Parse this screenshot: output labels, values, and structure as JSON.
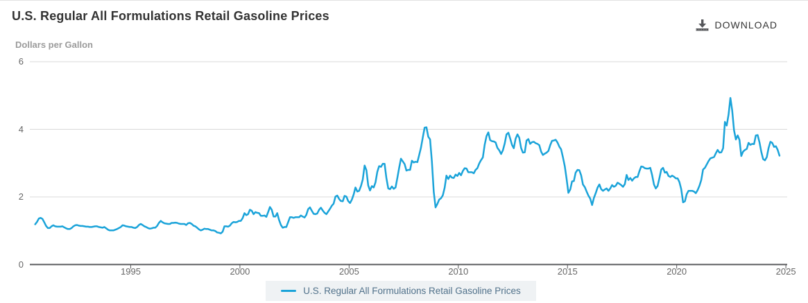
{
  "header": {
    "title": "U.S. Regular All Formulations Retail Gasoline Prices",
    "download_label": "DOWNLOAD"
  },
  "colors": {
    "line": "#1aa3d9",
    "grid": "#d9d9d9",
    "axis": "#58595b",
    "title_text": "#333333",
    "tick_text": "#666666",
    "subtitle_text": "#9b9b9b",
    "legend_bg": "#eff2f4",
    "legend_text": "#50718a"
  },
  "chart_data": {
    "type": "line",
    "title": "U.S. Regular All Formulations Retail Gasoline Prices",
    "xlabel": "",
    "ylabel": "Dollars per Gallon",
    "x_ticks": [
      1995,
      2000,
      2005,
      2010,
      2015,
      2020,
      2025
    ],
    "y_ticks": [
      0,
      2,
      4,
      6
    ],
    "ylim": [
      0,
      6
    ],
    "xlim": [
      1990.38,
      2025.06
    ],
    "grid": true,
    "legend_position": "bottom",
    "series": [
      {
        "name": "U.S. Regular All Formulations Retail Gasoline Prices",
        "frequency": "monthly",
        "start_year": 1990,
        "start_month": 8,
        "end_year": 2024,
        "end_month": 9,
        "values": [
          1.19,
          1.26,
          1.36,
          1.38,
          1.35,
          1.25,
          1.14,
          1.08,
          1.08,
          1.13,
          1.16,
          1.13,
          1.12,
          1.12,
          1.12,
          1.13,
          1.1,
          1.07,
          1.05,
          1.05,
          1.08,
          1.13,
          1.16,
          1.17,
          1.15,
          1.14,
          1.14,
          1.13,
          1.12,
          1.12,
          1.11,
          1.11,
          1.12,
          1.13,
          1.13,
          1.11,
          1.1,
          1.09,
          1.11,
          1.07,
          1.03,
          1.01,
          1.01,
          1.01,
          1.03,
          1.05,
          1.08,
          1.11,
          1.16,
          1.15,
          1.13,
          1.12,
          1.11,
          1.11,
          1.09,
          1.08,
          1.11,
          1.17,
          1.2,
          1.17,
          1.13,
          1.11,
          1.08,
          1.06,
          1.07,
          1.09,
          1.09,
          1.14,
          1.23,
          1.29,
          1.25,
          1.22,
          1.21,
          1.2,
          1.2,
          1.23,
          1.23,
          1.24,
          1.23,
          1.21,
          1.2,
          1.2,
          1.2,
          1.17,
          1.22,
          1.23,
          1.2,
          1.15,
          1.13,
          1.09,
          1.04,
          1.01,
          1.03,
          1.06,
          1.05,
          1.05,
          1.03,
          1.01,
          1.01,
          0.99,
          0.95,
          0.94,
          0.92,
          0.97,
          1.13,
          1.13,
          1.12,
          1.15,
          1.22,
          1.26,
          1.25,
          1.26,
          1.29,
          1.29,
          1.37,
          1.52,
          1.46,
          1.49,
          1.62,
          1.59,
          1.49,
          1.55,
          1.53,
          1.52,
          1.44,
          1.44,
          1.45,
          1.41,
          1.55,
          1.7,
          1.62,
          1.42,
          1.42,
          1.52,
          1.32,
          1.17,
          1.09,
          1.11,
          1.11,
          1.25,
          1.4,
          1.4,
          1.38,
          1.4,
          1.4,
          1.4,
          1.45,
          1.42,
          1.39,
          1.47,
          1.64,
          1.69,
          1.59,
          1.5,
          1.49,
          1.51,
          1.62,
          1.68,
          1.6,
          1.53,
          1.49,
          1.57,
          1.65,
          1.74,
          1.8,
          2.01,
          2.04,
          1.94,
          1.88,
          1.87,
          2.03,
          2.01,
          1.88,
          1.82,
          1.92,
          2.07,
          2.28,
          2.16,
          2.18,
          2.32,
          2.51,
          2.93,
          2.79,
          2.34,
          2.19,
          2.32,
          2.28,
          2.43,
          2.74,
          2.91,
          2.89,
          2.98,
          2.98,
          2.56,
          2.25,
          2.23,
          2.31,
          2.24,
          2.28,
          2.56,
          2.86,
          3.13,
          3.05,
          2.97,
          2.78,
          2.8,
          2.8,
          3.07,
          3.02,
          3.04,
          3.03,
          3.24,
          3.46,
          3.76,
          4.05,
          4.06,
          3.78,
          3.7,
          3.05,
          2.15,
          1.69,
          1.79,
          1.92,
          1.96,
          2.05,
          2.27,
          2.63,
          2.53,
          2.63,
          2.57,
          2.56,
          2.66,
          2.62,
          2.71,
          2.64,
          2.77,
          2.85,
          2.84,
          2.73,
          2.73,
          2.73,
          2.7,
          2.8,
          2.85,
          2.99,
          3.09,
          3.17,
          3.54,
          3.8,
          3.91,
          3.68,
          3.65,
          3.64,
          3.61,
          3.45,
          3.38,
          3.27,
          3.38,
          3.58,
          3.85,
          3.9,
          3.73,
          3.54,
          3.44,
          3.72,
          3.85,
          3.75,
          3.45,
          3.31,
          3.32,
          3.67,
          3.71,
          3.57,
          3.62,
          3.63,
          3.59,
          3.57,
          3.53,
          3.34,
          3.24,
          3.28,
          3.31,
          3.36,
          3.53,
          3.66,
          3.67,
          3.69,
          3.61,
          3.49,
          3.41,
          3.17,
          2.91,
          2.54,
          2.12,
          2.22,
          2.46,
          2.47,
          2.72,
          2.8,
          2.79,
          2.64,
          2.37,
          2.29,
          2.16,
          2.04,
          1.95,
          1.76,
          1.97,
          2.11,
          2.27,
          2.37,
          2.23,
          2.18,
          2.22,
          2.25,
          2.18,
          2.25,
          2.35,
          2.3,
          2.33,
          2.42,
          2.39,
          2.35,
          2.3,
          2.38,
          2.65,
          2.5,
          2.56,
          2.48,
          2.55,
          2.59,
          2.59,
          2.76,
          2.9,
          2.89,
          2.85,
          2.84,
          2.84,
          2.86,
          2.65,
          2.37,
          2.25,
          2.32,
          2.55,
          2.81,
          2.86,
          2.72,
          2.74,
          2.62,
          2.59,
          2.63,
          2.6,
          2.55,
          2.55,
          2.44,
          2.23,
          1.84,
          1.87,
          2.08,
          2.18,
          2.18,
          2.18,
          2.16,
          2.11,
          2.2,
          2.33,
          2.5,
          2.81,
          2.86,
          2.96,
          3.06,
          3.14,
          3.16,
          3.18,
          3.29,
          3.39,
          3.31,
          3.32,
          3.44,
          4.22,
          4.11,
          4.44,
          4.93,
          4.56,
          3.98,
          3.7,
          3.82,
          3.69,
          3.21,
          3.34,
          3.39,
          3.42,
          3.6,
          3.54,
          3.57,
          3.56,
          3.82,
          3.83,
          3.61,
          3.33,
          3.12,
          3.08,
          3.18,
          3.45,
          3.63,
          3.6,
          3.48,
          3.5,
          3.39,
          3.22
        ]
      }
    ]
  }
}
